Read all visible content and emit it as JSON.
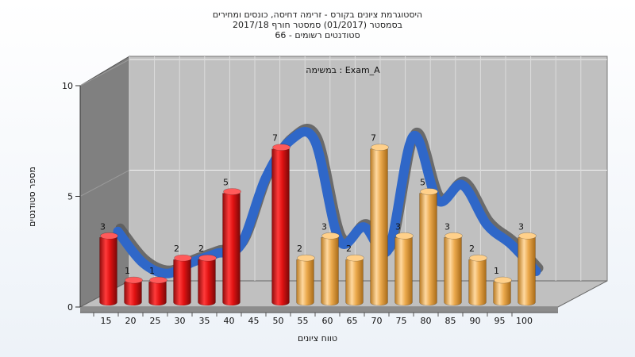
{
  "chart_data": {
    "type": "bar",
    "title_lines": [
      "היסטוגרמת ציונים בקורס - זרימה דחיסה, כונסים ומחירים",
      "בסמסטר  (01/2017)  סמסטר חורף  2017/18",
      "סטודנטים רשומים - 66"
    ],
    "annotation": "במשימה : Exam_A",
    "xlabel": "טווח ציונים",
    "ylabel": "מספר סטודנטים",
    "ylim": [
      0,
      10
    ],
    "yticks": [
      0,
      5,
      10
    ],
    "xticks": [
      "15",
      "20",
      "25",
      "30",
      "35",
      "40",
      "45",
      "50",
      "55",
      "60",
      "65",
      "70",
      "75",
      "80",
      "85",
      "90",
      "95",
      "100"
    ],
    "bars": [
      {
        "x": 15,
        "value": 3,
        "group": "fail"
      },
      {
        "x": 20,
        "value": 1,
        "group": "fail"
      },
      {
        "x": 25,
        "value": 1,
        "group": "fail"
      },
      {
        "x": 30,
        "value": 2,
        "group": "fail"
      },
      {
        "x": 35,
        "value": 2,
        "group": "fail"
      },
      {
        "x": 40,
        "value": 5,
        "group": "fail"
      },
      {
        "x": 50,
        "value": 7,
        "group": "fail"
      },
      {
        "x": 55,
        "value": 2,
        "group": "pass"
      },
      {
        "x": 60,
        "value": 3,
        "group": "pass"
      },
      {
        "x": 65,
        "value": 2,
        "group": "pass"
      },
      {
        "x": 70,
        "value": 7,
        "group": "pass"
      },
      {
        "x": 75,
        "value": 3,
        "group": "pass"
      },
      {
        "x": 80,
        "value": 5,
        "group": "pass"
      },
      {
        "x": 85,
        "value": 3,
        "group": "pass"
      },
      {
        "x": 90,
        "value": 2,
        "group": "pass"
      },
      {
        "x": 95,
        "value": 1,
        "group": "pass"
      },
      {
        "x": 100,
        "value": 3,
        "group": "pass"
      }
    ],
    "curve": {
      "x": [
        15,
        20,
        25,
        30,
        35,
        40,
        45,
        50,
        55,
        60,
        65,
        70,
        75,
        80,
        85,
        90,
        95,
        100
      ],
      "y": [
        3.2,
        1.8,
        1.3,
        1.8,
        2.2,
        2.6,
        5.6,
        7.3,
        7.3,
        2.8,
        3.4,
        2.4,
        7.5,
        4.6,
        5.3,
        3.5,
        2.6,
        1.4
      ]
    },
    "colors": {
      "fail": "#e31b1b",
      "pass": "#e9a545",
      "curve": "#2f67c8"
    },
    "grid": true
  }
}
